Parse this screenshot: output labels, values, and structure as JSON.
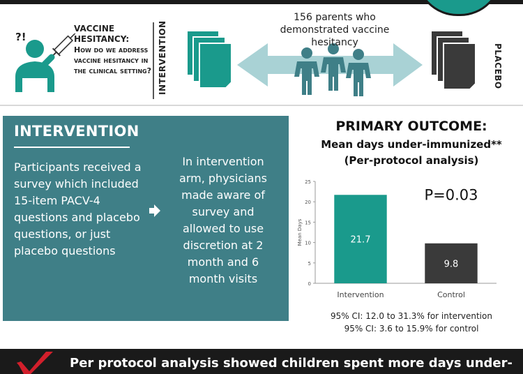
{
  "header": {
    "question_mark": "?!",
    "vaccine_hesitancy_title": "VACCINE HESITANCY:",
    "vaccine_hesitancy_question": "How do we address vaccine hesitancy in the clinical setting?",
    "parents_label": "156 parents who demonstrated vaccine hesitancy",
    "intervention_label": "INTERVENTION",
    "placebo_label": "PLACEBO"
  },
  "intervention_panel": {
    "title": "INTERVENTION",
    "left_text": "Participants received a survey which included 15-item PACV-4 questions and placebo questions, or just placebo questions",
    "right_text": "In intervention arm, physicians made aware of survey and allowed to use discretion at 2 month and 6 month visits"
  },
  "outcome": {
    "title": "PRIMARY OUTCOME:",
    "subtitle1": "Mean days under-immunized**",
    "subtitle2": "(Per-protocol analysis)",
    "ci_intervention": "95% CI: 12.0 to 31.3% for intervention",
    "ci_control": "95% CI: 3.6 to 15.9% for control"
  },
  "chart_data": {
    "type": "bar",
    "categories": [
      "Intervention",
      "Control"
    ],
    "values": [
      21.7,
      9.8
    ],
    "value_labels": [
      "21.7",
      "9.8"
    ],
    "bar_colors": [
      "#1a9a8c",
      "#3a3a3a"
    ],
    "ylabel": "Mean Days",
    "ylim": [
      0,
      25
    ],
    "yticks": [
      0,
      5,
      10,
      15,
      20,
      25
    ],
    "annotation": "P=0.03",
    "grid": false
  },
  "footer": {
    "text": "Per protocol analysis showed children spent more days under-"
  },
  "colors": {
    "teal": "#1a9a8c",
    "panel": "#3f7f87",
    "dark": "#3a3a3a",
    "arrow": "#a9d2d5"
  }
}
